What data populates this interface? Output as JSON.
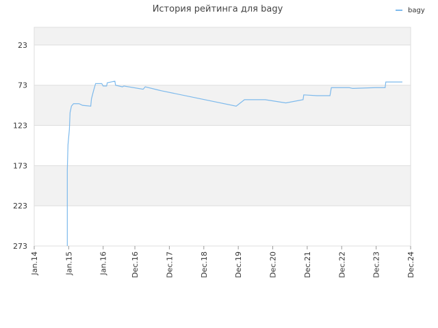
{
  "chart_data": {
    "type": "line",
    "title": "История рейтинга для bagy",
    "legend": "top-right",
    "invert_y": true,
    "ylim": [
      273,
      1
    ],
    "yticks": [
      23,
      73,
      123,
      173,
      223,
      273
    ],
    "xlim": [
      2014,
      2024.92
    ],
    "xticks": [
      {
        "value": 2014,
        "label": "Jan.14"
      },
      {
        "value": 2015,
        "label": "Jan.15"
      },
      {
        "value": 2016,
        "label": "Jan.16"
      },
      {
        "value": 2016.92,
        "label": "Dec.16"
      },
      {
        "value": 2017.92,
        "label": "Dec.17"
      },
      {
        "value": 2018.92,
        "label": "Dec.18"
      },
      {
        "value": 2019.92,
        "label": "Dec.19"
      },
      {
        "value": 2020.92,
        "label": "Dec.20"
      },
      {
        "value": 2021.92,
        "label": "Dec.21"
      },
      {
        "value": 2022.92,
        "label": "Dec.22"
      },
      {
        "value": 2023.92,
        "label": "Dec.23"
      },
      {
        "value": 2024.92,
        "label": "Dec.24"
      }
    ],
    "series": [
      {
        "name": "bagy",
        "color": "#7cb9ec",
        "x": [
          2014.96,
          2014.96,
          2014.98,
          2015.02,
          2015.04,
          2015.08,
          2015.14,
          2015.3,
          2015.4,
          2015.64,
          2015.66,
          2015.72,
          2015.78,
          2015.96,
          2016.0,
          2016.1,
          2016.12,
          2016.34,
          2016.36,
          2016.56,
          2016.6,
          2017.16,
          2017.22,
          2017.6,
          2017.7,
          2019.86,
          2020.1,
          2020.7,
          2021.3,
          2021.8,
          2021.82,
          2022.2,
          2022.58,
          2022.62,
          2023.14,
          2023.24,
          2023.9,
          2024.18,
          2024.2,
          2024.68
        ],
        "values": [
          273,
          178,
          147,
          128,
          107,
          99,
          96,
          96,
          98,
          99,
          90,
          80,
          71,
          71,
          74,
          74,
          70,
          68,
          73,
          75,
          74,
          78,
          75,
          79,
          80,
          99,
          91,
          91,
          95,
          91,
          85,
          86,
          86,
          76,
          76,
          77,
          76,
          76,
          69,
          69
        ]
      }
    ]
  }
}
